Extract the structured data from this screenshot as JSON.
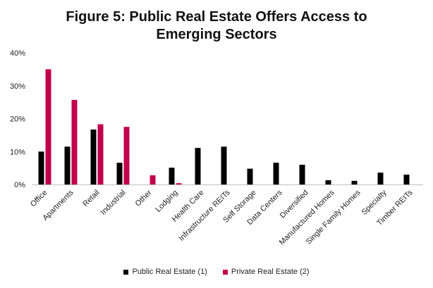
{
  "chart_data": {
    "type": "bar",
    "title_line1": "Figure 5: Public Real Estate Offers Access to",
    "title_line2": "Emerging Sectors",
    "categories": [
      "Office",
      "Apartments",
      "Retail",
      "Industrial",
      "Other",
      "Lodging",
      "Health Care",
      "Infrastructure REITs",
      "Self Storage",
      "Data Centers",
      "Diversified",
      "Manufactured Homes",
      "Single Family Homes",
      "Specialty",
      "Timber REITs"
    ],
    "series": [
      {
        "name": "Public Real Estate (1)",
        "color": "#000000",
        "values": [
          10.0,
          11.5,
          16.7,
          6.6,
          null,
          5.1,
          11.1,
          11.5,
          4.8,
          6.6,
          6.0,
          1.3,
          1.1,
          3.6,
          3.0
        ]
      },
      {
        "name": "Private Real Estate (2)",
        "color": "#c2004b",
        "values": [
          35.0,
          25.7,
          18.3,
          17.5,
          2.8,
          0.4,
          null,
          null,
          null,
          null,
          null,
          null,
          null,
          null,
          null
        ]
      }
    ],
    "ylim": [
      0,
      40
    ],
    "yticks": [
      0,
      10,
      20,
      30,
      40
    ],
    "ytick_labels": [
      "0%",
      "10%",
      "20%",
      "30%",
      "40%"
    ],
    "xlabel": "",
    "ylabel": "",
    "grid": false,
    "legend_position": "bottom"
  }
}
